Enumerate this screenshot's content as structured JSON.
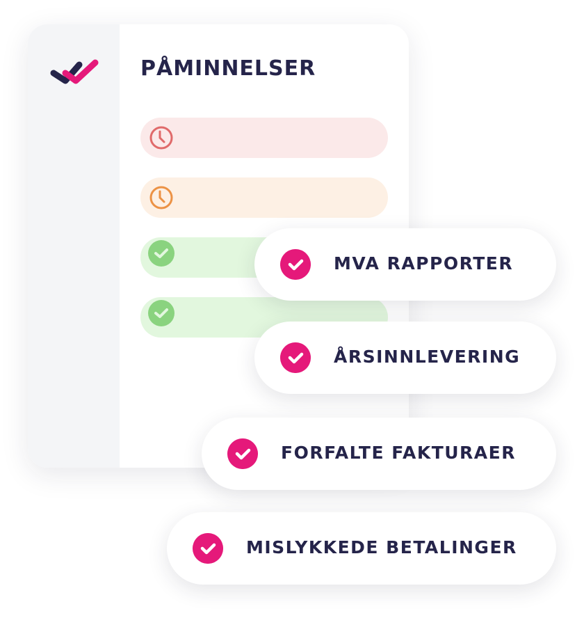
{
  "card": {
    "title": "PÅMINNELSER",
    "rows": [
      {
        "status": "overdue",
        "icon": "clock-icon",
        "color": "#e06a6a",
        "bg": "#fbe9e9"
      },
      {
        "status": "warning",
        "icon": "clock-icon",
        "color": "#ec9245",
        "bg": "#fdf0e4"
      },
      {
        "status": "done",
        "icon": "check-circle-icon",
        "color": "#8ad37f",
        "bg": "#e2f7de"
      },
      {
        "status": "done",
        "icon": "check-circle-icon",
        "color": "#8ad37f",
        "bg": "#e2f7de"
      }
    ]
  },
  "pills": [
    {
      "label": "MVA RAPPORTER",
      "icon": "check-circle-icon"
    },
    {
      "label": "ÅRSINNLEVERING",
      "icon": "check-circle-icon"
    },
    {
      "label": "FORFALTE FAKTURAER",
      "icon": "check-circle-icon"
    },
    {
      "label": "MISLYKKEDE BETALINGER",
      "icon": "check-circle-icon"
    }
  ],
  "colors": {
    "accent": "#e5197a",
    "text": "#25244a"
  }
}
